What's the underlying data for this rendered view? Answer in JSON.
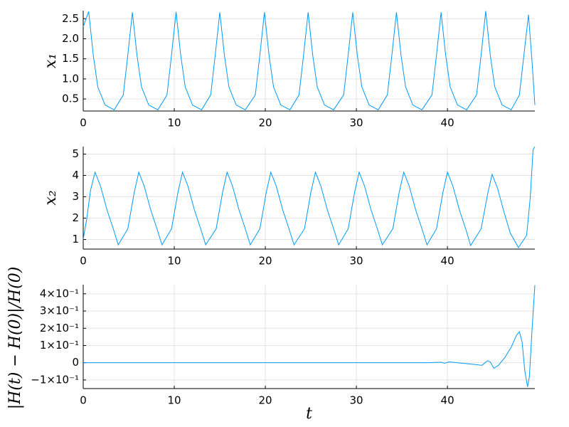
{
  "chart_data": [
    {
      "type": "line",
      "ylabel": "x₁",
      "color": "#009af9",
      "grid": true,
      "xlim": [
        0,
        49.6
      ],
      "xticks": [
        0,
        10,
        20,
        30,
        40
      ],
      "ylim": [
        0.2,
        2.7
      ],
      "yticks": [
        {
          "value": 0.5,
          "label": "0.5"
        },
        {
          "value": 1.0,
          "label": "1.0"
        },
        1.5,
        {
          "value": 2.0,
          "label": "2.0"
        },
        2.5
      ],
      "x": [
        0,
        0.6,
        1.1,
        1.6,
        2.4,
        3.4,
        4.4,
        4.9,
        5.4,
        5.9,
        6.4,
        7.2,
        8.2,
        9.2,
        9.7,
        10.2,
        10.7,
        11.2,
        12.0,
        13.0,
        14.0,
        14.5,
        15.0,
        15.5,
        16.0,
        16.8,
        17.8,
        18.9,
        19.4,
        19.9,
        20.4,
        20.9,
        21.7,
        22.7,
        23.7,
        24.2,
        24.7,
        25.2,
        25.7,
        26.5,
        27.5,
        28.6,
        29.1,
        29.6,
        30.1,
        30.6,
        31.4,
        32.4,
        33.4,
        33.9,
        34.4,
        34.9,
        35.4,
        36.2,
        37.2,
        38.3,
        38.8,
        39.3,
        39.8,
        40.3,
        41.1,
        42.1,
        43.2,
        43.7,
        44.2,
        44.7,
        45.2,
        46.0,
        47.0,
        47.9,
        48.4,
        48.9,
        49.3,
        49.6
      ],
      "values": [
        2.3,
        2.68,
        1.6,
        0.8,
        0.35,
        0.23,
        0.6,
        1.6,
        2.66,
        1.6,
        0.8,
        0.35,
        0.23,
        0.6,
        1.6,
        2.67,
        1.6,
        0.8,
        0.35,
        0.23,
        0.6,
        1.6,
        2.66,
        1.6,
        0.8,
        0.35,
        0.23,
        0.6,
        1.6,
        2.66,
        1.6,
        0.8,
        0.35,
        0.23,
        0.6,
        1.6,
        2.66,
        1.6,
        0.8,
        0.35,
        0.23,
        0.6,
        1.6,
        2.66,
        1.6,
        0.8,
        0.35,
        0.23,
        0.6,
        1.6,
        2.66,
        1.6,
        0.8,
        0.35,
        0.23,
        0.6,
        1.6,
        2.66,
        1.6,
        0.8,
        0.35,
        0.23,
        0.6,
        1.6,
        2.69,
        1.6,
        0.8,
        0.35,
        0.23,
        0.6,
        1.6,
        2.6,
        1.4,
        0.35
      ]
    },
    {
      "type": "line",
      "ylabel": "x₂",
      "color": "#009af9",
      "grid": true,
      "xlim": [
        0,
        49.6
      ],
      "xticks": [
        0,
        10,
        20,
        30,
        40
      ],
      "ylim": [
        0.55,
        5.35
      ],
      "yticks": [
        1,
        2,
        3,
        4,
        5
      ],
      "x": [
        0,
        0.4,
        0.8,
        1.3,
        1.9,
        2.6,
        3.3,
        3.85,
        4.9,
        5.6,
        6.1,
        6.7,
        7.4,
        8.1,
        8.65,
        9.7,
        10.4,
        10.9,
        11.5,
        12.2,
        12.9,
        13.45,
        14.6,
        15.3,
        15.8,
        16.4,
        17.1,
        17.8,
        18.35,
        19.4,
        20.1,
        20.6,
        21.2,
        21.9,
        22.6,
        23.15,
        24.3,
        25.0,
        25.5,
        26.1,
        26.8,
        27.5,
        28.05,
        29.1,
        29.8,
        30.3,
        30.9,
        31.6,
        32.3,
        32.85,
        34.0,
        34.7,
        35.2,
        35.8,
        36.5,
        37.2,
        37.75,
        38.8,
        39.5,
        40.0,
        40.6,
        41.3,
        42.0,
        42.55,
        43.7,
        44.4,
        44.9,
        45.5,
        46.2,
        46.9,
        47.8,
        48.7,
        49.1,
        49.4,
        49.6
      ],
      "values": [
        1.0,
        2.0,
        3.3,
        4.15,
        3.5,
        2.4,
        1.5,
        0.75,
        1.5,
        3.2,
        4.15,
        3.5,
        2.4,
        1.5,
        0.75,
        1.5,
        3.2,
        4.15,
        3.5,
        2.4,
        1.5,
        0.75,
        1.5,
        3.2,
        4.15,
        3.5,
        2.4,
        1.5,
        0.75,
        1.5,
        3.2,
        4.15,
        3.5,
        2.4,
        1.5,
        0.75,
        1.5,
        3.2,
        4.15,
        3.5,
        2.4,
        1.5,
        0.75,
        1.5,
        3.2,
        4.15,
        3.5,
        2.4,
        1.5,
        0.75,
        1.5,
        3.2,
        4.15,
        3.5,
        2.4,
        1.5,
        0.75,
        1.5,
        3.2,
        4.15,
        3.5,
        2.4,
        1.5,
        0.72,
        1.5,
        3.1,
        4.05,
        3.4,
        2.3,
        1.3,
        0.62,
        1.2,
        3.0,
        5.2,
        5.35
      ]
    },
    {
      "type": "line",
      "ylabel": "|H(t) − H(0)|/H(0)",
      "xlabel": "t",
      "color": "#009af9",
      "grid": true,
      "xlim": [
        0,
        49.6
      ],
      "xticks": [
        0,
        10,
        20,
        30,
        40
      ],
      "ylim": [
        -0.15,
        0.453
      ],
      "yticks": [
        {
          "value": -0.1,
          "label": "−1×10⁻¹"
        },
        0,
        {
          "value": 0.1,
          "label": "1×10⁻¹"
        },
        {
          "value": 0.2,
          "label": "2×10⁻¹"
        },
        {
          "value": 0.3,
          "label": "3×10⁻¹"
        },
        {
          "value": 0.4,
          "label": "4×10⁻¹"
        }
      ],
      "x": [
        0,
        38,
        39.3,
        39.7,
        40.2,
        41,
        42,
        43,
        43.8,
        44.4,
        44.7,
        45.1,
        45.6,
        46.3,
        47,
        47.6,
        47.9,
        48.2,
        48.5,
        48.8,
        49.0,
        49.3,
        49.6
      ],
      "values": [
        0,
        0,
        0.003,
        -0.003,
        0.005,
        0.0,
        -0.005,
        -0.01,
        -0.015,
        0.012,
        0.005,
        -0.032,
        -0.015,
        0.03,
        0.09,
        0.16,
        0.18,
        0.12,
        -0.05,
        -0.14,
        -0.08,
        0.2,
        0.45
      ]
    }
  ]
}
